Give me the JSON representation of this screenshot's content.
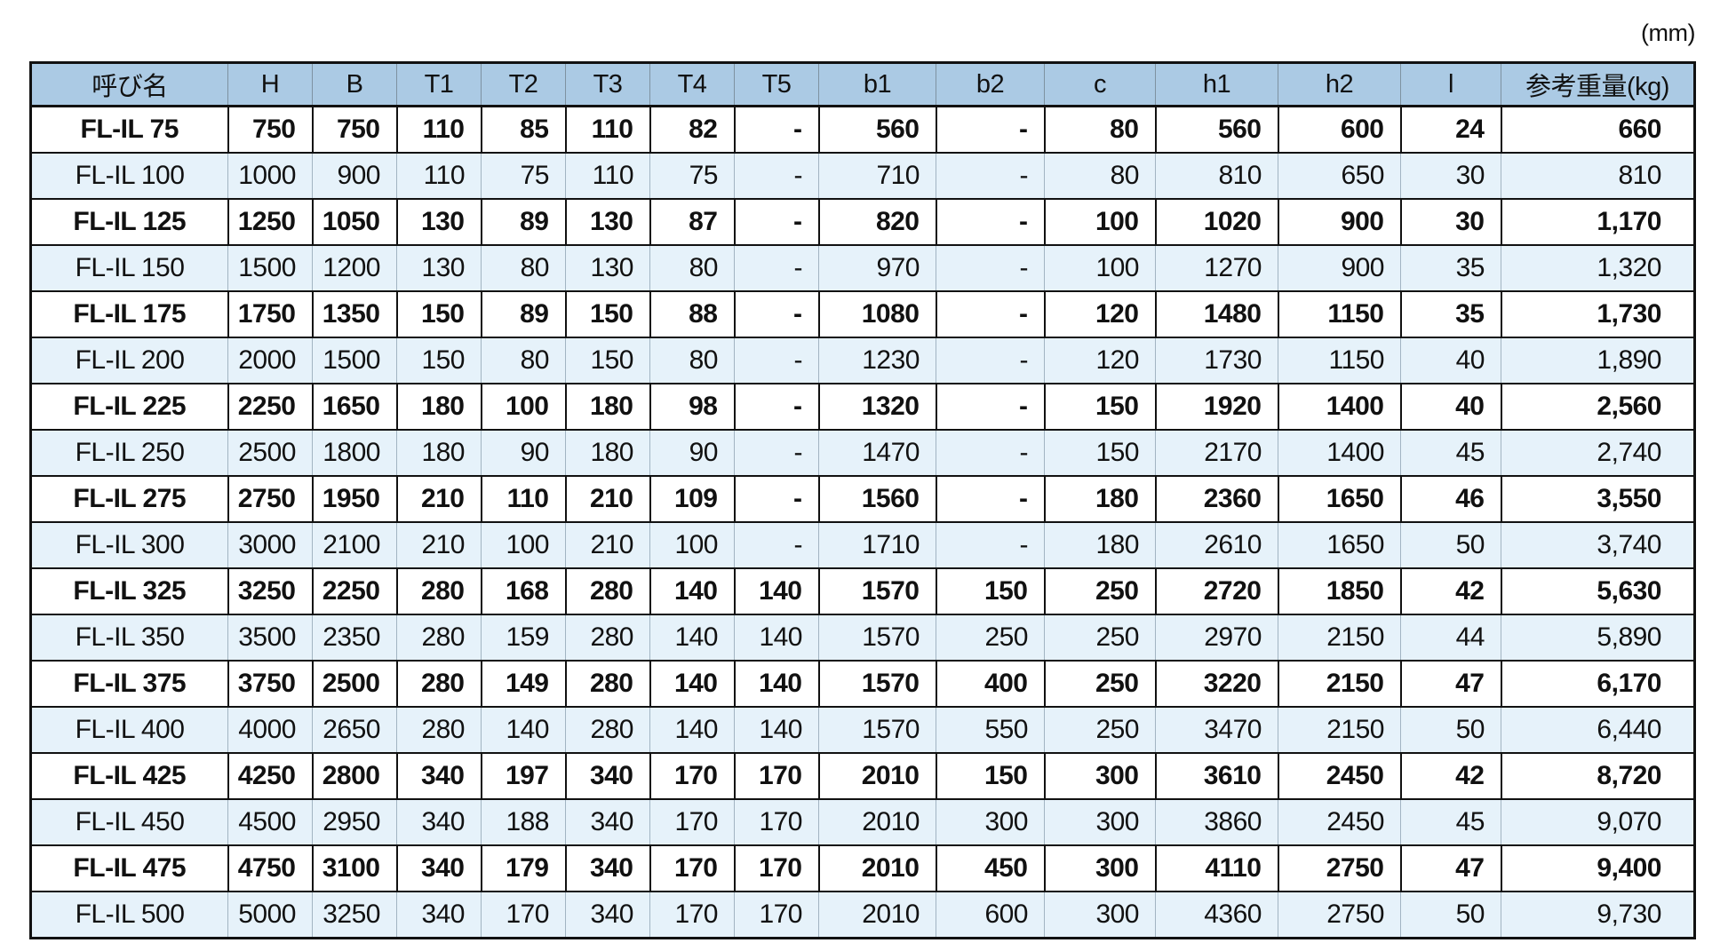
{
  "unit_label": "(mm)",
  "colors": {
    "header_bg": "#abcae4",
    "alt_row_bg": "#e6f2fa",
    "border": "#111111",
    "grid_gray": "#7e92a1"
  },
  "table": {
    "columns": [
      "呼び名",
      "H",
      "B",
      "T1",
      "T2",
      "T3",
      "T4",
      "T5",
      "b1",
      "b2",
      "c",
      "h1",
      "h2",
      "l",
      "参考重量(kg)"
    ],
    "rows": [
      {
        "name": "FL-IL  75",
        "values": [
          "750",
          "750",
          "110",
          "85",
          "110",
          "82",
          "-",
          "560",
          "-",
          "80",
          "560",
          "600",
          "24",
          "660"
        ]
      },
      {
        "name": "FL-IL 100",
        "values": [
          "1000",
          "900",
          "110",
          "75",
          "110",
          "75",
          "-",
          "710",
          "-",
          "80",
          "810",
          "650",
          "30",
          "810"
        ]
      },
      {
        "name": "FL-IL 125",
        "values": [
          "1250",
          "1050",
          "130",
          "89",
          "130",
          "87",
          "-",
          "820",
          "-",
          "100",
          "1020",
          "900",
          "30",
          "1,170"
        ]
      },
      {
        "name": "FL-IL 150",
        "values": [
          "1500",
          "1200",
          "130",
          "80",
          "130",
          "80",
          "-",
          "970",
          "-",
          "100",
          "1270",
          "900",
          "35",
          "1,320"
        ]
      },
      {
        "name": "FL-IL 175",
        "values": [
          "1750",
          "1350",
          "150",
          "89",
          "150",
          "88",
          "-",
          "1080",
          "-",
          "120",
          "1480",
          "1150",
          "35",
          "1,730"
        ]
      },
      {
        "name": "FL-IL 200",
        "values": [
          "2000",
          "1500",
          "150",
          "80",
          "150",
          "80",
          "-",
          "1230",
          "-",
          "120",
          "1730",
          "1150",
          "40",
          "1,890"
        ]
      },
      {
        "name": "FL-IL 225",
        "values": [
          "2250",
          "1650",
          "180",
          "100",
          "180",
          "98",
          "-",
          "1320",
          "-",
          "150",
          "1920",
          "1400",
          "40",
          "2,560"
        ]
      },
      {
        "name": "FL-IL 250",
        "values": [
          "2500",
          "1800",
          "180",
          "90",
          "180",
          "90",
          "-",
          "1470",
          "-",
          "150",
          "2170",
          "1400",
          "45",
          "2,740"
        ]
      },
      {
        "name": "FL-IL 275",
        "values": [
          "2750",
          "1950",
          "210",
          "110",
          "210",
          "109",
          "-",
          "1560",
          "-",
          "180",
          "2360",
          "1650",
          "46",
          "3,550"
        ]
      },
      {
        "name": "FL-IL 300",
        "values": [
          "3000",
          "2100",
          "210",
          "100",
          "210",
          "100",
          "-",
          "1710",
          "-",
          "180",
          "2610",
          "1650",
          "50",
          "3,740"
        ]
      },
      {
        "name": "FL-IL 325",
        "values": [
          "3250",
          "2250",
          "280",
          "168",
          "280",
          "140",
          "140",
          "1570",
          "150",
          "250",
          "2720",
          "1850",
          "42",
          "5,630"
        ]
      },
      {
        "name": "FL-IL 350",
        "values": [
          "3500",
          "2350",
          "280",
          "159",
          "280",
          "140",
          "140",
          "1570",
          "250",
          "250",
          "2970",
          "2150",
          "44",
          "5,890"
        ]
      },
      {
        "name": "FL-IL 375",
        "values": [
          "3750",
          "2500",
          "280",
          "149",
          "280",
          "140",
          "140",
          "1570",
          "400",
          "250",
          "3220",
          "2150",
          "47",
          "6,170"
        ]
      },
      {
        "name": "FL-IL 400",
        "values": [
          "4000",
          "2650",
          "280",
          "140",
          "280",
          "140",
          "140",
          "1570",
          "550",
          "250",
          "3470",
          "2150",
          "50",
          "6,440"
        ]
      },
      {
        "name": "FL-IL 425",
        "values": [
          "4250",
          "2800",
          "340",
          "197",
          "340",
          "170",
          "170",
          "2010",
          "150",
          "300",
          "3610",
          "2450",
          "42",
          "8,720"
        ]
      },
      {
        "name": "FL-IL 450",
        "values": [
          "4500",
          "2950",
          "340",
          "188",
          "340",
          "170",
          "170",
          "2010",
          "300",
          "300",
          "3860",
          "2450",
          "45",
          "9,070"
        ]
      },
      {
        "name": "FL-IL 475",
        "values": [
          "4750",
          "3100",
          "340",
          "179",
          "340",
          "170",
          "170",
          "2010",
          "450",
          "300",
          "4110",
          "2750",
          "47",
          "9,400"
        ]
      },
      {
        "name": "FL-IL 500",
        "values": [
          "5000",
          "3250",
          "340",
          "170",
          "340",
          "170",
          "170",
          "2010",
          "600",
          "300",
          "4360",
          "2750",
          "50",
          "9,730"
        ]
      }
    ]
  }
}
